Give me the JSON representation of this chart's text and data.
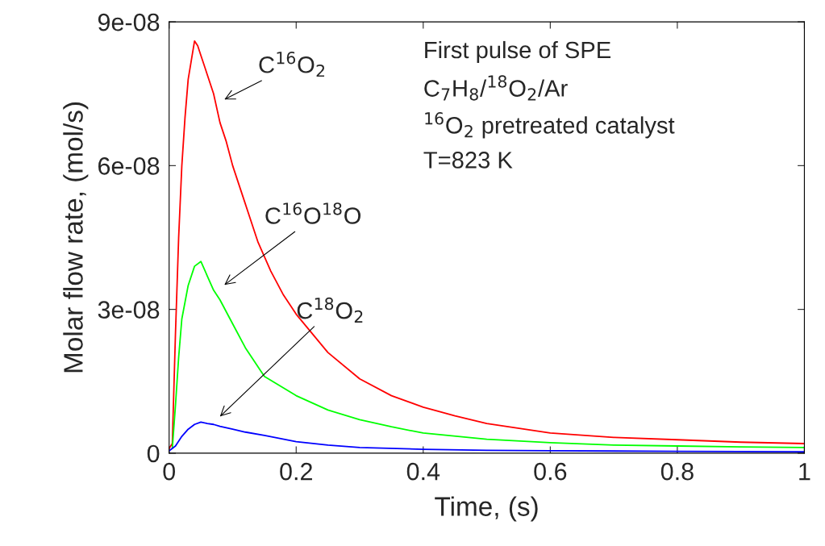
{
  "chart_data": {
    "type": "line",
    "xlabel": "Time, (s)",
    "ylabel": "Molar flow rate, (mol/s)",
    "xlim": [
      0,
      1
    ],
    "ylim": [
      0,
      9e-08
    ],
    "xticks": [
      0,
      0.2,
      0.4,
      0.6,
      0.8,
      1
    ],
    "yticks": [
      0,
      {
        "value": 3e-08,
        "label": "3e-08"
      },
      {
        "value": 6e-08,
        "label": "6e-08"
      },
      {
        "value": 9e-08,
        "label": "9e-08"
      }
    ],
    "grid": false,
    "legend": false,
    "marker": "none",
    "line_style": "solid",
    "series": [
      {
        "color": "#ff0000",
        "x": [
          0,
          0.005,
          0.01,
          0.015,
          0.02,
          0.025,
          0.03,
          0.035,
          0.04,
          0.045,
          0.05,
          0.055,
          0.06,
          0.07,
          0.08,
          0.09,
          0.1,
          0.12,
          0.14,
          0.16,
          0.18,
          0.2,
          0.25,
          0.3,
          0.35,
          0.4,
          0.45,
          0.5,
          0.6,
          0.7,
          0.8,
          0.9,
          1
        ],
        "values": [
          1e-09,
          2e-09,
          2.5e-08,
          4.5e-08,
          6e-08,
          7e-08,
          7.8e-08,
          8.2e-08,
          8.6e-08,
          8.5e-08,
          8.3e-08,
          8.1e-08,
          7.9e-08,
          7.5e-08,
          6.9e-08,
          6.5e-08,
          6e-08,
          5.2e-08,
          4.4e-08,
          3.8e-08,
          3.3e-08,
          2.9e-08,
          2.1e-08,
          1.55e-08,
          1.2e-08,
          9.6e-09,
          7.8e-09,
          6.2e-09,
          4.2e-09,
          3.3e-09,
          2.8e-09,
          2.3e-09,
          2e-09
        ]
      },
      {
        "color": "#00ff00",
        "x": [
          0.005,
          0.01,
          0.015,
          0.02,
          0.03,
          0.04,
          0.05,
          0.06,
          0.07,
          0.08,
          0.1,
          0.12,
          0.15,
          0.2,
          0.25,
          0.3,
          0.35,
          0.4,
          0.5,
          0.6,
          0.7,
          0.8,
          0.9,
          1
        ],
        "values": [
          1e-09,
          1e-08,
          2e-08,
          2.8e-08,
          3.5e-08,
          3.9e-08,
          4e-08,
          3.7e-08,
          3.4e-08,
          3.2e-08,
          2.7e-08,
          2.2e-08,
          1.6e-08,
          1.2e-08,
          9e-09,
          7e-09,
          5.5e-09,
          4.2e-09,
          2.9e-09,
          2.2e-09,
          1.7e-09,
          1.5e-09,
          1.3e-09,
          1.2e-09
        ]
      },
      {
        "color": "#0000ff",
        "x": [
          0,
          0.01,
          0.02,
          0.03,
          0.04,
          0.05,
          0.06,
          0.07,
          0.08,
          0.1,
          0.12,
          0.15,
          0.2,
          0.25,
          0.3,
          0.4,
          0.5,
          0.6,
          0.8,
          1
        ],
        "values": [
          5e-10,
          1.5e-09,
          3.5e-09,
          5e-09,
          6e-09,
          6.5e-09,
          6.2e-09,
          6e-09,
          5.6e-09,
          5e-09,
          4.4e-09,
          3.7e-09,
          2.4e-09,
          1.7e-09,
          1.2e-09,
          8e-10,
          6e-10,
          5e-10,
          4e-10,
          3e-10
        ]
      }
    ],
    "annotations": [
      "C$^{16}$O$_{2}$",
      "C$^{16}$O$^{18}$O",
      "C$^{18}$O$_{2}$",
      "First pulse of SPE",
      "C$_{7}$H$_{8}$/$^{18}$O$_{2}$/Ar",
      "$^{16}$O$_{2}$ pretreated catalyst",
      "T=823 K"
    ]
  }
}
